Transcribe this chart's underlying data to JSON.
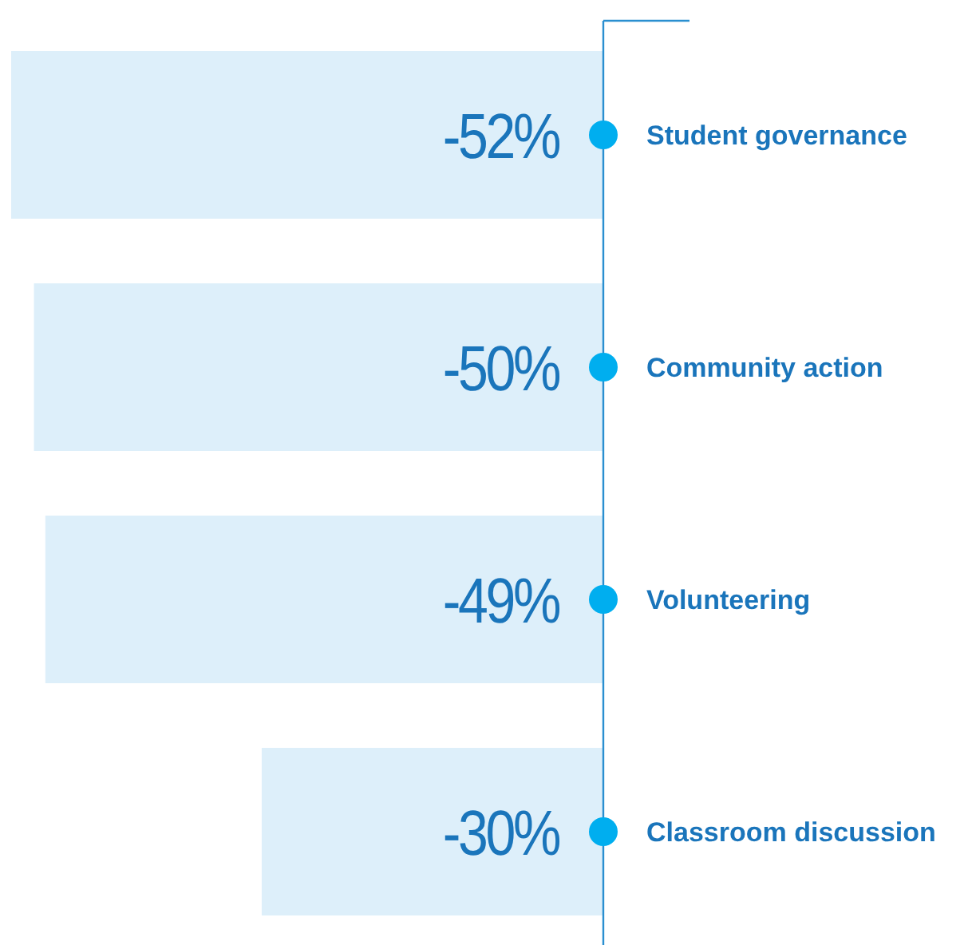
{
  "chart_data": {
    "type": "bar",
    "orientation": "horizontal",
    "categories": [
      "Student governance",
      "Community action",
      "Volunteering",
      "Classroom discussion"
    ],
    "values": [
      -52,
      -50,
      -49,
      -30
    ],
    "value_labels": [
      "-52%",
      "-50%",
      "-49%",
      "-30%"
    ],
    "color": "#ddeffa",
    "tick_labels": "y"
  }
}
